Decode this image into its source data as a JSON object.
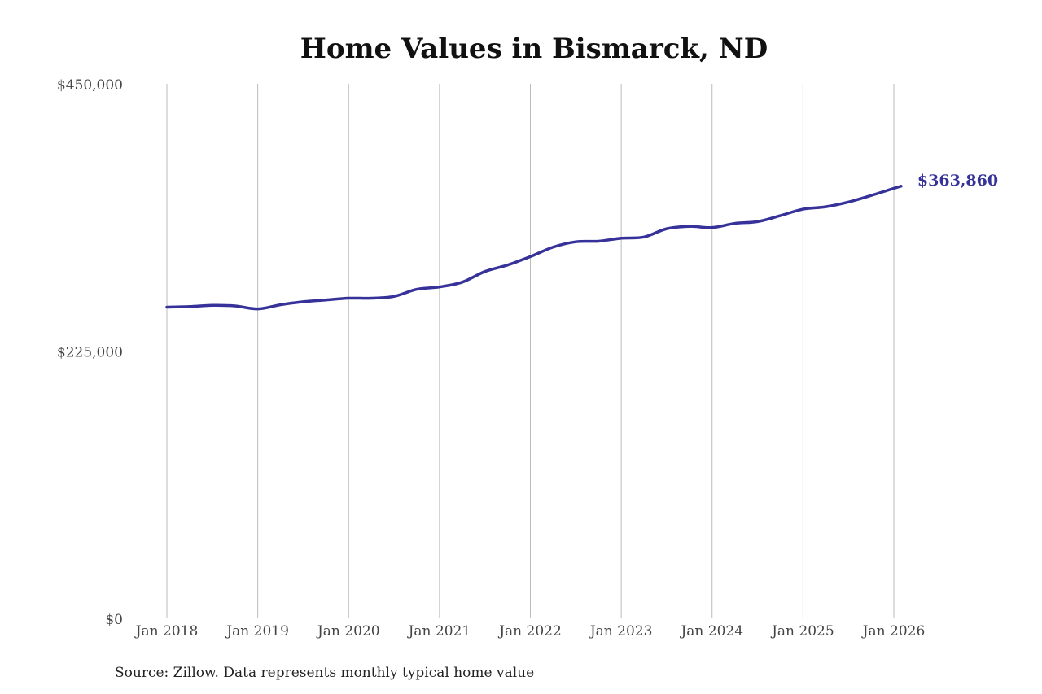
{
  "chart_data": {
    "type": "line",
    "title": "Home Values in Bismarck, ND",
    "xlabel": "",
    "ylabel": "",
    "ylim": [
      0,
      450000
    ],
    "yticks": [
      0,
      225000,
      450000
    ],
    "ytick_labels": [
      "$0",
      "$225,000",
      "$450,000"
    ],
    "xticks": [
      2018,
      2019,
      2020,
      2021,
      2022,
      2023,
      2024,
      2025,
      2026
    ],
    "xtick_labels": [
      "Jan 2018",
      "Jan 2019",
      "Jan 2020",
      "Jan 2021",
      "Jan 2022",
      "Jan 2023",
      "Jan 2024",
      "Jan 2025",
      "Jan 2026"
    ],
    "grid": "vertical",
    "series": [
      {
        "name": "Typical home value",
        "color": "#36329a",
        "x": [
          2018.0,
          2018.25,
          2018.5,
          2018.75,
          2019.0,
          2019.25,
          2019.5,
          2019.75,
          2020.0,
          2020.25,
          2020.5,
          2020.75,
          2021.0,
          2021.25,
          2021.5,
          2021.75,
          2022.0,
          2022.25,
          2022.5,
          2022.75,
          2023.0,
          2023.25,
          2023.5,
          2023.75,
          2024.0,
          2024.25,
          2024.5,
          2024.75,
          2025.0,
          2025.25,
          2025.5,
          2025.75,
          2026.0,
          2026.08
        ],
        "values": [
          262000,
          262500,
          263500,
          263000,
          260500,
          264000,
          266500,
          268000,
          269500,
          269500,
          271000,
          277000,
          279000,
          283000,
          292000,
          297500,
          304500,
          312500,
          317000,
          317500,
          320000,
          321000,
          328000,
          330000,
          329000,
          332500,
          334000,
          339000,
          344500,
          346500,
          350500,
          356000,
          362000,
          363860
        ]
      }
    ],
    "end_label": "$363,860",
    "source": "Source: Zillow. Data represents monthly typical home value"
  }
}
